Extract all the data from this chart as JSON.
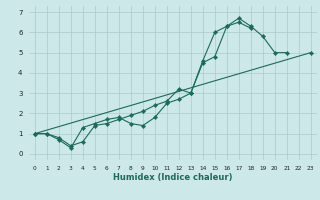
{
  "xlabel": "Humidex (Indice chaleur)",
  "background_color": "#cce8e8",
  "grid_color": "#aacccc",
  "line_color": "#1a6b5a",
  "xlim": [
    -0.5,
    23.5
  ],
  "ylim": [
    -0.3,
    7.3
  ],
  "xticks": [
    0,
    1,
    2,
    3,
    4,
    5,
    6,
    7,
    8,
    9,
    10,
    11,
    12,
    13,
    14,
    15,
    16,
    17,
    18,
    19,
    20,
    21,
    22,
    23
  ],
  "yticks": [
    0,
    1,
    2,
    3,
    4,
    5,
    6,
    7
  ],
  "line1_x": [
    0,
    1,
    2,
    3,
    4,
    5,
    6,
    7,
    8,
    9,
    10,
    11,
    12,
    13,
    14,
    15,
    16,
    17,
    18,
    19,
    20,
    21
  ],
  "line1_y": [
    1,
    1,
    0.8,
    0.4,
    0.6,
    1.4,
    1.5,
    1.7,
    1.9,
    2.1,
    2.4,
    2.6,
    3.2,
    3.0,
    4.6,
    6.0,
    6.3,
    6.7,
    6.3,
    5.8,
    5.0,
    5.0
  ],
  "line2_x": [
    0,
    1,
    2,
    3,
    4,
    5,
    6,
    7,
    8,
    9,
    10,
    11,
    12,
    13,
    14,
    15,
    16,
    17,
    18
  ],
  "line2_y": [
    1,
    1,
    0.7,
    0.3,
    1.3,
    1.5,
    1.7,
    1.8,
    1.5,
    1.4,
    1.8,
    2.5,
    2.7,
    3.0,
    4.5,
    4.8,
    6.3,
    6.5,
    6.2
  ],
  "line3_x": [
    0,
    23
  ],
  "line3_y": [
    1,
    5.0
  ]
}
